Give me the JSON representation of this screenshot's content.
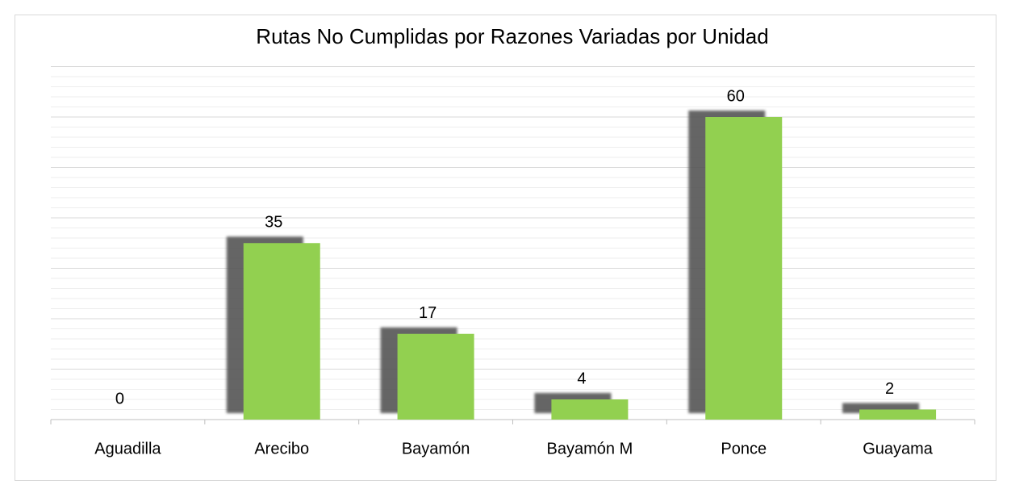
{
  "chart_data": {
    "type": "bar",
    "title": "Rutas No Cumplidas por Razones Variadas por Unidad",
    "categories": [
      "Aguadilla",
      "Arecibo",
      "Bayamón",
      "Bayamón M",
      "Ponce",
      "Guayama"
    ],
    "values": [
      0,
      35,
      17,
      4,
      60,
      2
    ],
    "color": "#92d050",
    "ylim": [
      0,
      70
    ],
    "yticks": [
      0,
      10,
      20,
      30,
      40,
      50,
      60,
      70
    ],
    "grid": true
  }
}
